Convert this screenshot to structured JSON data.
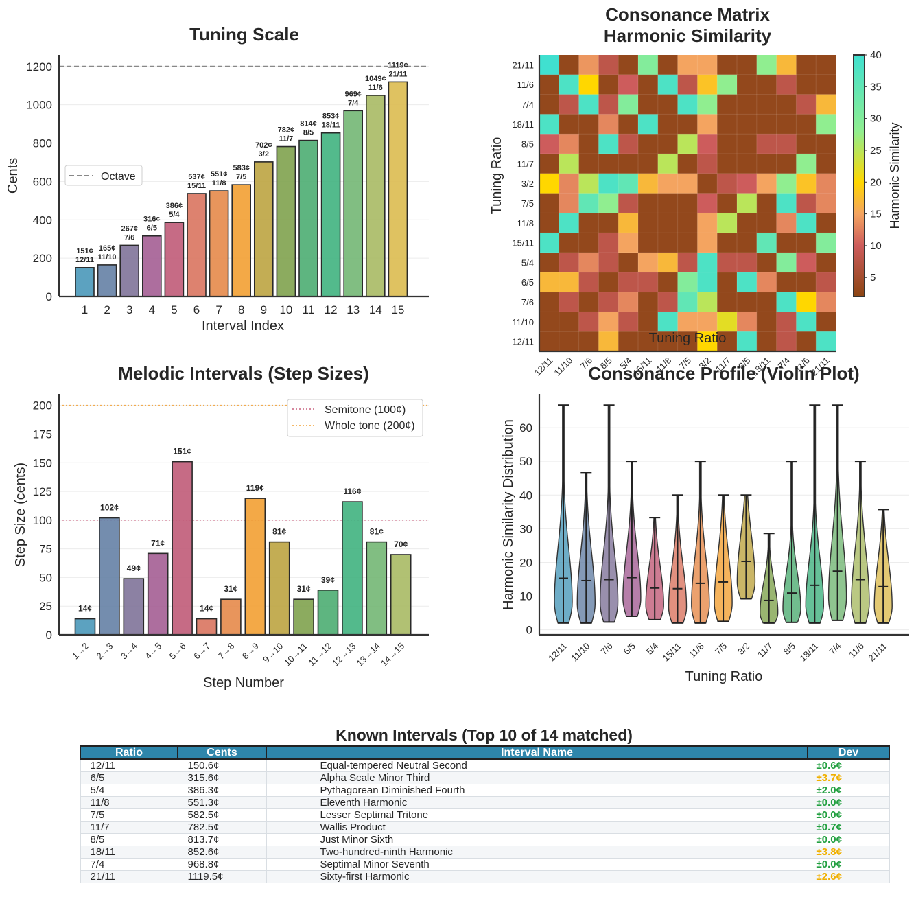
{
  "ratios": [
    "12/11",
    "11/10",
    "7/6",
    "6/5",
    "5/4",
    "15/11",
    "11/8",
    "7/5",
    "3/2",
    "11/7",
    "8/5",
    "18/11",
    "7/4",
    "11/6",
    "21/11"
  ],
  "colors": [
    "#4a98b9",
    "#6581a5",
    "#807399",
    "#a45e93",
    "#c05b78",
    "#d9745f",
    "#e6894a",
    "#f2a033",
    "#bda441",
    "#7fa24e",
    "#4dad72",
    "#40b280",
    "#73b774",
    "#a9ba64",
    "#dcbb50"
  ],
  "chart_data": [
    {
      "type": "bar",
      "title": "Tuning Scale",
      "xlabel": "Interval Index",
      "ylabel": "Cents",
      "categories": [
        "1",
        "2",
        "3",
        "4",
        "5",
        "6",
        "7",
        "8",
        "9",
        "10",
        "11",
        "12",
        "13",
        "14",
        "15"
      ],
      "values": [
        151,
        165,
        267,
        316,
        386,
        537,
        551,
        583,
        702,
        782,
        814,
        853,
        969,
        1049,
        1119
      ],
      "data_labels": [
        [
          "151¢",
          "12/11"
        ],
        [
          "165¢",
          "11/10"
        ],
        [
          "267¢",
          "7/6"
        ],
        [
          "316¢",
          "6/5"
        ],
        [
          "386¢",
          "5/4"
        ],
        [
          "537¢",
          "15/11"
        ],
        [
          "551¢",
          "11/8"
        ],
        [
          "583¢",
          "7/5"
        ],
        [
          "702¢",
          "3/2"
        ],
        [
          "782¢",
          "11/7"
        ],
        [
          "814¢",
          "8/5"
        ],
        [
          "853¢",
          "18/11"
        ],
        [
          "969¢",
          "7/4"
        ],
        [
          "1049¢",
          "11/6"
        ],
        [
          "1119¢",
          "21/11"
        ]
      ],
      "yticks": [
        "0",
        "200",
        "400",
        "600",
        "800",
        "1000",
        "1200"
      ],
      "ylim": [
        0,
        1260
      ],
      "reference_line": {
        "value": 1200,
        "label": "Octave"
      },
      "legend": "center-left"
    },
    {
      "type": "heatmap",
      "title": "Consonance Matrix",
      "subtitle": "Harmonic Similarity",
      "xlabel": "Tuning Ratio",
      "ylabel": "Tuning Ratio",
      "colorbar_label": "Harmonic Similarity",
      "colorbar_ticks": [
        "5",
        "10",
        "15",
        "20",
        "25",
        "30",
        "35",
        "40"
      ],
      "range": [
        2,
        40
      ],
      "row_order": "top-to-bottom: 21/11 ... 12/11",
      "matrix": [
        [
          40,
          3,
          14,
          8,
          3,
          30,
          3,
          15,
          15,
          3,
          3,
          28,
          17,
          3,
          3
        ],
        [
          3,
          38,
          20,
          3,
          10,
          3,
          38,
          8,
          18,
          28,
          3,
          3,
          8,
          3,
          3
        ],
        [
          3,
          8,
          38,
          8,
          30,
          3,
          3,
          38,
          28,
          3,
          3,
          3,
          3,
          8,
          17
        ],
        [
          38,
          3,
          3,
          13,
          3,
          38,
          3,
          3,
          15,
          3,
          3,
          3,
          3,
          3,
          28
        ],
        [
          10,
          13,
          3,
          38,
          8,
          3,
          3,
          25,
          10,
          3,
          3,
          8,
          8,
          3,
          3
        ],
        [
          3,
          25,
          3,
          3,
          3,
          3,
          25,
          3,
          8,
          3,
          3,
          3,
          3,
          28,
          3
        ],
        [
          20,
          13,
          25,
          38,
          35,
          17,
          15,
          15,
          3,
          8,
          10,
          15,
          28,
          18,
          13
        ],
        [
          3,
          13,
          35,
          28,
          8,
          3,
          3,
          3,
          10,
          3,
          25,
          3,
          38,
          8,
          13
        ],
        [
          3,
          38,
          3,
          3,
          17,
          3,
          3,
          3,
          15,
          25,
          3,
          3,
          13,
          38,
          3
        ],
        [
          38,
          3,
          3,
          8,
          15,
          3,
          3,
          3,
          15,
          3,
          3,
          35,
          3,
          3,
          30
        ],
        [
          3,
          8,
          13,
          8,
          3,
          15,
          17,
          8,
          38,
          8,
          8,
          3,
          30,
          10,
          3
        ],
        [
          17,
          17,
          8,
          3,
          8,
          8,
          3,
          30,
          38,
          3,
          38,
          13,
          3,
          3,
          8
        ],
        [
          3,
          8,
          3,
          8,
          13,
          3,
          8,
          35,
          25,
          3,
          3,
          3,
          38,
          20,
          13
        ],
        [
          3,
          3,
          8,
          15,
          8,
          3,
          38,
          15,
          15,
          22,
          13,
          3,
          8,
          38,
          3
        ],
        [
          3,
          3,
          3,
          17,
          3,
          3,
          3,
          3,
          20,
          3,
          38,
          3,
          8,
          3,
          38
        ]
      ]
    },
    {
      "type": "bar",
      "title": "Melodic Intervals (Step Sizes)",
      "xlabel": "Step Number",
      "ylabel": "Step Size (cents)",
      "categories": [
        "1→2",
        "2→3",
        "3→4",
        "4→5",
        "5→6",
        "6→7",
        "7→8",
        "8→9",
        "9→10",
        "10→11",
        "11→12",
        "12→13",
        "13→14",
        "14→15"
      ],
      "values": [
        14,
        102,
        49,
        71,
        151,
        14,
        31,
        119,
        81,
        31,
        39,
        116,
        81,
        70
      ],
      "data_labels": [
        "14¢",
        "102¢",
        "49¢",
        "71¢",
        "151¢",
        "14¢",
        "31¢",
        "119¢",
        "81¢",
        "31¢",
        "39¢",
        "116¢",
        "81¢",
        "70¢"
      ],
      "yticks": [
        "0",
        "25",
        "50",
        "75",
        "100",
        "125",
        "150",
        "175",
        "200"
      ],
      "ylim": [
        0,
        210
      ],
      "reference_lines": [
        {
          "value": 100,
          "label": "Semitone (100¢)",
          "color": "#c9607e"
        },
        {
          "value": 200,
          "label": "Whole tone (200¢)",
          "color": "#f2a033"
        }
      ],
      "legend": "top-right"
    },
    {
      "type": "violin",
      "title": "Consonance Profile (Violin Plot)",
      "xlabel": "Tuning Ratio",
      "ylabel": "Harmonic Similarity Distribution",
      "categories": [
        "12/11",
        "11/10",
        "7/6",
        "6/5",
        "5/4",
        "15/11",
        "11/8",
        "7/5",
        "3/2",
        "11/7",
        "8/5",
        "18/11",
        "7/4",
        "11/6",
        "21/11"
      ],
      "min": [
        2,
        2,
        2.3,
        4,
        3,
        2,
        2,
        2.5,
        9.2,
        2,
        2.2,
        2,
        2.8,
        2,
        2
      ],
      "max": [
        66.7,
        46.7,
        66.7,
        50,
        33.3,
        40,
        50,
        40,
        40,
        28.6,
        50,
        66.7,
        66.7,
        50,
        35.7
      ],
      "mean": [
        15.3,
        14.6,
        14.9,
        15.5,
        12.4,
        12.2,
        13.8,
        14.2,
        20.3,
        8.7,
        10.9,
        13.2,
        17.4,
        14.9,
        12.8
      ],
      "yticks": [
        "0",
        "10",
        "20",
        "30",
        "40",
        "50",
        "60"
      ],
      "ylim": [
        -1.5,
        70
      ]
    }
  ],
  "table": {
    "title": "Known Intervals (Top 10 of 14 matched)",
    "headers": [
      "Ratio",
      "Cents",
      "Interval Name",
      "Dev"
    ],
    "rows": [
      {
        "ratio": "12/11",
        "cents": "150.6¢",
        "name": "Equal-tempered Neutral Second",
        "dev": "±0.6¢",
        "status": "good"
      },
      {
        "ratio": "6/5",
        "cents": "315.6¢",
        "name": "Alpha Scale Minor Third",
        "dev": "±3.7¢",
        "status": "warn"
      },
      {
        "ratio": "5/4",
        "cents": "386.3¢",
        "name": "Pythagorean Diminished Fourth",
        "dev": "±2.0¢",
        "status": "good"
      },
      {
        "ratio": "11/8",
        "cents": "551.3¢",
        "name": "Eleventh Harmonic",
        "dev": "±0.0¢",
        "status": "good"
      },
      {
        "ratio": "7/5",
        "cents": "582.5¢",
        "name": "Lesser Septimal Tritone",
        "dev": "±0.0¢",
        "status": "good"
      },
      {
        "ratio": "11/7",
        "cents": "782.5¢",
        "name": "Wallis Product",
        "dev": "±0.7¢",
        "status": "good"
      },
      {
        "ratio": "8/5",
        "cents": "813.7¢",
        "name": "Just Minor Sixth",
        "dev": "±0.0¢",
        "status": "good"
      },
      {
        "ratio": "18/11",
        "cents": "852.6¢",
        "name": "Two-hundred-ninth Harmonic",
        "dev": "±3.8¢",
        "status": "warn"
      },
      {
        "ratio": "7/4",
        "cents": "968.8¢",
        "name": "Septimal Minor Seventh",
        "dev": "±0.0¢",
        "status": "good"
      },
      {
        "ratio": "21/11",
        "cents": "1119.5¢",
        "name": "Sixty-first Harmonic",
        "dev": "±2.6¢",
        "status": "warn"
      }
    ],
    "status_colors": {
      "good": "#22a040",
      "warn": "#f0b000"
    }
  }
}
